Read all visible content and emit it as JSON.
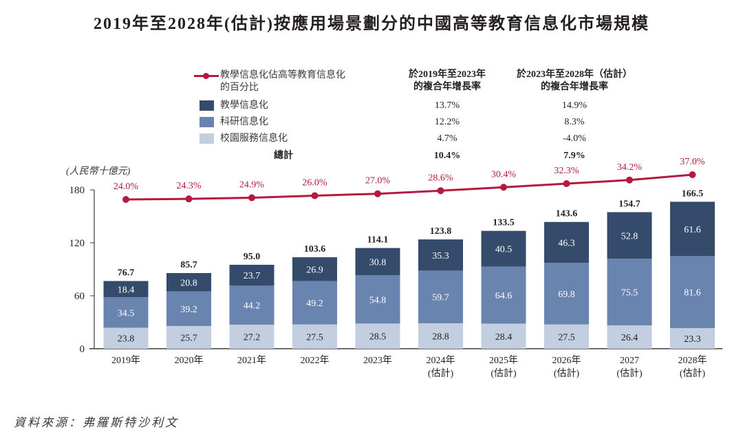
{
  "title": "2019年至2028年(估計)按應用場景劃分的中國高等教育信息化市場規模",
  "unit_label": "(人民幣十億元)",
  "source": "資料來源：弗羅斯特沙利文",
  "legend": {
    "line_label_1": "教學信息化佔高等教育信息化",
    "line_label_2": "的百分比",
    "col1_header_1": "於2019年至2023年",
    "col1_header_2": "的複合年增長率",
    "col2_header_1": "於2023年至2028年（估計）",
    "col2_header_2": "的複合年增長率",
    "rows": [
      {
        "label": "教學信息化",
        "color": "#344b6c",
        "cagr_2019_2023": "13.7%",
        "cagr_2023_2028": "14.9%"
      },
      {
        "label": "科研信息化",
        "color": "#6985af",
        "cagr_2019_2023": "12.2%",
        "cagr_2023_2028": "8.3%"
      },
      {
        "label": "校園服務信息化",
        "color": "#c3cfe0",
        "cagr_2019_2023": "4.7%",
        "cagr_2023_2028": "-4.0%"
      }
    ],
    "total_label": "總計",
    "total_cagr_2019_2023": "10.4%",
    "total_cagr_2023_2028": "7.9%"
  },
  "chart_data": {
    "type": "bar",
    "stacked": true,
    "title": "2019年至2028年(估計)按應用場景劃分的中國高等教育信息化市場規模",
    "ylabel": "(人民幣十億元)",
    "xlabel": "",
    "ylim": [
      0,
      180
    ],
    "yticks": [
      0,
      60,
      120,
      180
    ],
    "grid": false,
    "legend_position": "top-center",
    "categories": [
      {
        "line1": "2019年",
        "line2": ""
      },
      {
        "line1": "2020年",
        "line2": ""
      },
      {
        "line1": "2021年",
        "line2": ""
      },
      {
        "line1": "2022年",
        "line2": ""
      },
      {
        "line1": "2023年",
        "line2": ""
      },
      {
        "line1": "2024年",
        "line2": "(估計)"
      },
      {
        "line1": "2025年",
        "line2": "(估計)"
      },
      {
        "line1": "2026年",
        "line2": "(估計)"
      },
      {
        "line1": "2027",
        "line2": "(估計)"
      },
      {
        "line1": "2028年",
        "line2": "(估計)"
      }
    ],
    "series": [
      {
        "name": "校園服務信息化",
        "color": "#c3cfe0",
        "label_color": "#231f20",
        "values": [
          23.8,
          25.7,
          27.2,
          27.5,
          28.5,
          28.8,
          28.4,
          27.5,
          26.4,
          23.3
        ]
      },
      {
        "name": "科研信息化",
        "color": "#6985af",
        "label_color": "#ffffff",
        "values": [
          34.5,
          39.2,
          44.2,
          49.2,
          54.8,
          59.7,
          64.6,
          69.8,
          75.5,
          81.6
        ]
      },
      {
        "name": "教學信息化",
        "color": "#344b6c",
        "label_color": "#ffffff",
        "values": [
          18.4,
          20.8,
          23.7,
          26.9,
          30.8,
          35.3,
          40.5,
          46.3,
          52.8,
          61.6
        ]
      }
    ],
    "totals": [
      76.7,
      85.7,
      95.0,
      103.6,
      114.1,
      123.8,
      133.5,
      143.6,
      154.7,
      166.5
    ],
    "line_series": {
      "name": "教學信息化佔高等教育信息化的百分比",
      "color": "#b5193f",
      "values": [
        24.0,
        24.3,
        24.9,
        26.0,
        27.0,
        28.6,
        30.4,
        32.3,
        34.2,
        37.0
      ],
      "labels": [
        "24.0%",
        "24.3%",
        "24.9%",
        "26.0%",
        "27.0%",
        "28.6%",
        "30.4%",
        "32.3%",
        "34.2%",
        "37.0%"
      ]
    }
  }
}
